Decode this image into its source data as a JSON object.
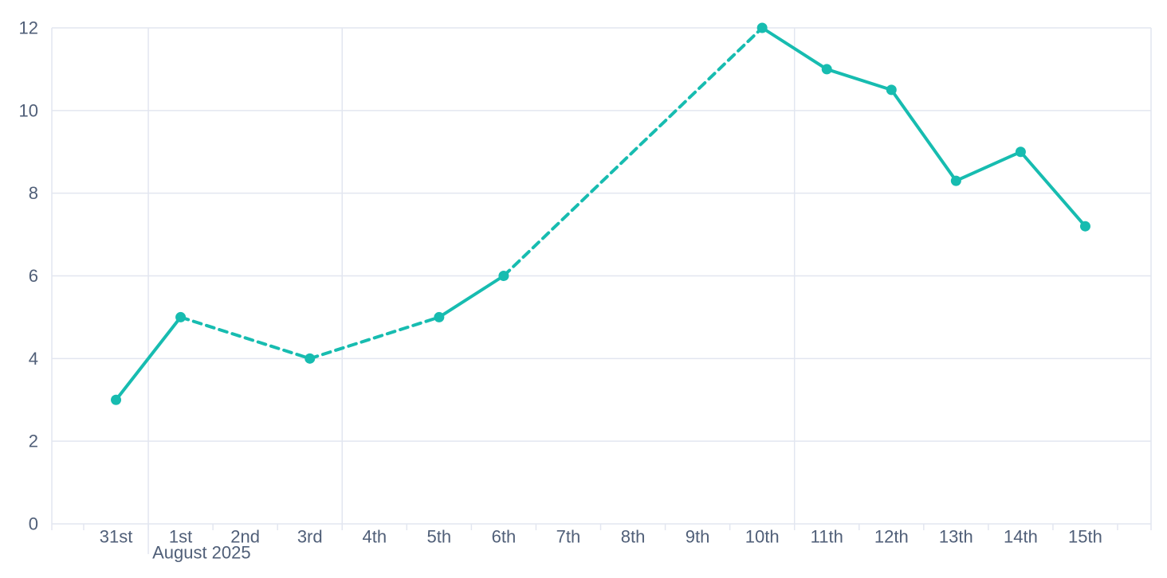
{
  "chart_data": {
    "type": "line",
    "title": "",
    "xlabel": "",
    "ylabel": "",
    "x_axis": {
      "unit": "day",
      "tick_labels": [
        "31st",
        "1st",
        "2nd",
        "3rd",
        "4th",
        "5th",
        "6th",
        "7th",
        "8th",
        "9th",
        "10th",
        "11th",
        "12th",
        "13th",
        "14th",
        "15th"
      ],
      "month_label": "August 2025",
      "month_label_at_day_index": 1,
      "vertical_gridline_boundary_indexes": [
        1,
        4,
        11
      ],
      "edge_gridlines": true
    },
    "y_axis": {
      "tick_labels": [
        "0",
        "2",
        "4",
        "6",
        "8",
        "10",
        "12"
      ],
      "tick_values": [
        0,
        2,
        4,
        6,
        8,
        10,
        12
      ],
      "range": [
        0,
        12
      ],
      "grid": true
    },
    "legend": null,
    "series": [
      {
        "name": "daily-values",
        "marker": "circle",
        "points": [
          {
            "date": "31st",
            "day_index": 0,
            "value": 3,
            "line_to_next": "solid"
          },
          {
            "date": "1st",
            "day_index": 1,
            "value": 5,
            "line_to_next": "dashed"
          },
          {
            "date": "3rd",
            "day_index": 3,
            "value": 4,
            "line_to_next": "dashed"
          },
          {
            "date": "5th",
            "day_index": 5,
            "value": 5,
            "line_to_next": "solid"
          },
          {
            "date": "6th",
            "day_index": 6,
            "value": 6,
            "line_to_next": "dashed"
          },
          {
            "date": "10th",
            "day_index": 10,
            "value": 12,
            "line_to_next": "solid"
          },
          {
            "date": "11th",
            "day_index": 11,
            "value": 11,
            "line_to_next": "solid"
          },
          {
            "date": "12th",
            "day_index": 12,
            "value": 10.5,
            "line_to_next": "solid"
          },
          {
            "date": "13th",
            "day_index": 13,
            "value": 8.3,
            "line_to_next": "solid"
          },
          {
            "date": "14th",
            "day_index": 14,
            "value": 9,
            "line_to_next": "solid"
          },
          {
            "date": "15th",
            "day_index": 15,
            "value": 7.2,
            "line_to_next": null
          }
        ]
      }
    ],
    "colors": {
      "line": "#17bcb0",
      "marker": "#17bcb0",
      "grid": "#e2e6f0",
      "axis_text": "#505f78",
      "background": "#ffffff"
    }
  }
}
